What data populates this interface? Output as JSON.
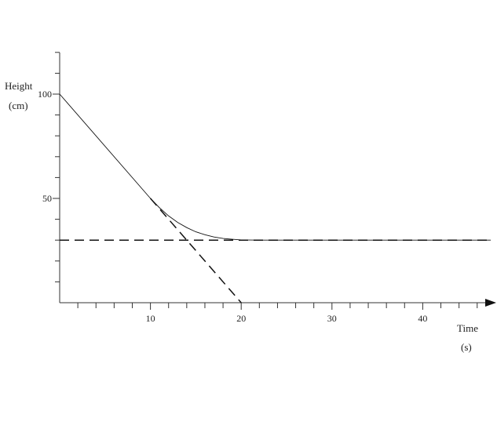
{
  "chart_data": {
    "type": "line",
    "title": "",
    "ylabel": "Height",
    "ylabel_unit": "(cm)",
    "xlabel": "Time",
    "xlabel_unit": "(s)",
    "xlim": [
      0,
      47.5
    ],
    "ylim": [
      0,
      120
    ],
    "x_tick_labels": [
      10,
      20,
      30,
      40
    ],
    "x_minor_step": 2,
    "y_tick_labels": [
      50,
      100
    ],
    "y_minor_step": 10,
    "grid": false,
    "legend": "none",
    "series": [
      {
        "style": "solid",
        "x": [
          0,
          10,
          11,
          12,
          13,
          14,
          15,
          16,
          17,
          18,
          19,
          20,
          22,
          25,
          30,
          35,
          40,
          47.5
        ],
        "y": [
          100,
          50,
          45.5,
          41.6,
          38.5,
          36,
          34,
          32.6,
          31.5,
          30.8,
          30.4,
          30.1,
          30,
          30,
          30,
          30,
          30,
          30
        ]
      },
      {
        "style": "dashed",
        "x": [
          0,
          47.5
        ],
        "y": [
          30,
          30
        ]
      },
      {
        "style": "dashed",
        "x": [
          10,
          20
        ],
        "y": [
          50,
          0
        ]
      }
    ]
  }
}
